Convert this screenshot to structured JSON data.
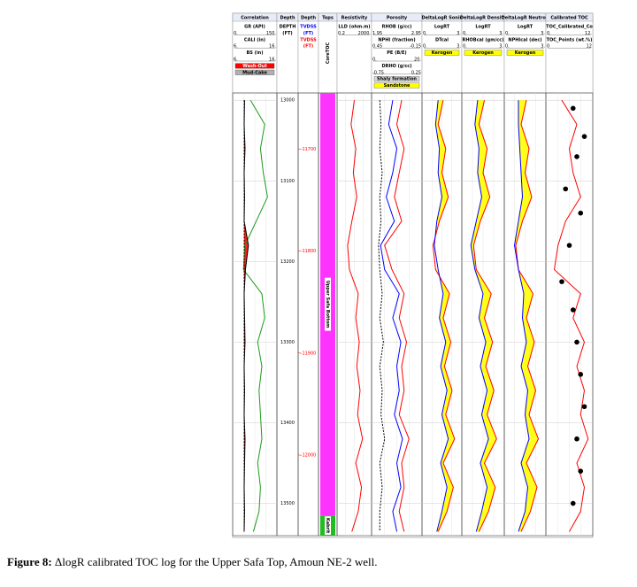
{
  "chart_data": {
    "type": "well-log",
    "samples": [
      13000,
      13030,
      13060,
      13090,
      13120,
      13150,
      13180,
      13210,
      13240,
      13270,
      13300,
      13330,
      13360,
      13390,
      13420,
      13450,
      13480,
      13510,
      13535
    ],
    "ylim": [
      12991,
      13540
    ],
    "yticks": [
      13000,
      13100,
      13200,
      13300,
      13400,
      13500
    ],
    "tvdss_lim": [
      -11645,
      -12079
    ],
    "tvdss_ticks": [
      -11700,
      -11800,
      -11900,
      -12000
    ],
    "zones": [
      {
        "name": "Upper Safa Bottom",
        "top": 12991,
        "base": 13515,
        "color": "#ff33ff"
      },
      {
        "name": "Kabrit",
        "top": 13515,
        "base": 13540,
        "color": "#22bb22"
      }
    ],
    "tracks": [
      {
        "title": "Correlation",
        "header": [
          [
            "GR (API)"
          ],
          [
            "0.",
            "150."
          ],
          [
            "CALI (in)"
          ],
          [
            "6.",
            "16."
          ],
          [
            "BS (in)"
          ],
          [
            "6.",
            "16."
          ],
          {
            "label": "Wash-Out",
            "color": "#ff0000"
          },
          {
            "label": "Mud-Cake",
            "color": "#b0b0b0"
          }
        ],
        "curves": [
          {
            "color": "#1a9a1a",
            "xlim": [
              0,
              150
            ],
            "values": [
              60,
              110,
              95,
              105,
              120,
              80,
              40,
              35,
              100,
              110,
              85,
              100,
              90,
              95,
              100,
              85,
              95,
              90,
              70
            ]
          },
          {
            "color": "#000000",
            "xlim": [
              6,
              16
            ],
            "values": [
              8.6,
              8.5,
              8.7,
              8.5,
              8.6,
              8.5,
              9.5,
              8.8,
              8.5,
              8.6,
              8.7,
              8.5,
              8.6,
              8.5,
              8.7,
              8.6,
              8.5,
              8.6,
              8.5
            ],
            "fill": {
              "with": 2,
              "color": "#ff0000"
            }
          },
          {
            "color": "#000000",
            "xlim": [
              6,
              16
            ],
            "dash": true,
            "values": [
              8.5,
              8.5,
              8.5,
              8.5,
              8.5,
              8.5,
              8.5,
              8.5,
              8.5,
              8.5,
              8.5,
              8.5,
              8.5,
              8.5,
              8.5,
              8.5,
              8.5,
              8.5,
              8.5
            ]
          }
        ]
      },
      {
        "title": "Depth",
        "header": [
          [
            "DEPTH"
          ],
          [
            "(FT)"
          ]
        ],
        "curves": []
      },
      {
        "title": "Depth",
        "header": [
          [
            "TVDSS"
          ],
          [
            "(FT)"
          ],
          [
            "TVDSS"
          ],
          [
            "(FT)"
          ]
        ],
        "curves": []
      },
      {
        "title": "Tops",
        "header": [],
        "vertical": "CoreTOC",
        "curves": []
      },
      {
        "title": "Resistivity",
        "header": [
          [
            "LLD (ohm.m)"
          ],
          [
            "0.2",
            "2000."
          ]
        ],
        "curves": [
          {
            "color": "#ff0000",
            "xlim": [
              0.2,
              2000
            ],
            "log": true,
            "values": [
              20,
              8,
              30,
              15,
              40,
              10,
              3,
              5,
              60,
              30,
              80,
              40,
              100,
              50,
              200,
              30,
              150,
              60,
              10
            ]
          }
        ]
      },
      {
        "title": "Porosity",
        "header": [
          [
            "RHOB (g/cc)"
          ],
          [
            "1.95",
            "2.95"
          ],
          [
            "NPHI (fraction)"
          ],
          [
            "0.45",
            "-0.15"
          ],
          [
            "PE (B/E)"
          ],
          [
            "0.",
            "20."
          ],
          [
            "DRHO (g/cc)"
          ],
          [
            "-0.75",
            "0.25"
          ],
          {
            "label": "Shaly formation",
            "color": "#d8d8d8"
          },
          {
            "label": "Sandstone",
            "color": "#ffff00"
          }
        ],
        "curves": [
          {
            "color": "#ff0000",
            "xlim": [
              1.95,
              2.95
            ],
            "values": [
              2.55,
              2.45,
              2.6,
              2.5,
              2.4,
              2.55,
              2.2,
              2.35,
              2.6,
              2.5,
              2.65,
              2.55,
              2.6,
              2.5,
              2.7,
              2.55,
              2.6,
              2.5,
              2.6
            ]
          },
          {
            "color": "#0000ff",
            "xlim": [
              0.45,
              -0.15
            ],
            "values": [
              0.2,
              0.25,
              0.15,
              0.2,
              0.28,
              0.18,
              0.35,
              0.3,
              0.12,
              0.2,
              0.1,
              0.15,
              0.12,
              0.18,
              0.08,
              0.15,
              0.1,
              0.2,
              0.15
            ]
          },
          {
            "color": "#000000",
            "xlim": [
              0,
              20
            ],
            "dash": true,
            "values": [
              3,
              3.5,
              3,
              4,
              3,
              3.5,
              2.5,
              3,
              4,
              3,
              4.5,
              3,
              4,
              3.5,
              5,
              3,
              4,
              3,
              3
            ]
          }
        ]
      },
      {
        "title": "DeltaLogR Sonic",
        "header": [
          [
            "LogRT"
          ],
          [
            "0.",
            "3."
          ],
          [
            "DTcal"
          ],
          [
            "0.",
            "3."
          ],
          {
            "label": "Kerogen",
            "color": "#ffff00"
          }
        ],
        "curves": [
          {
            "color": "#ff0000",
            "xlim": [
              0,
              3
            ],
            "values": [
              1.6,
              1.2,
              1.8,
              1.5,
              2.0,
              1.3,
              0.8,
              1.0,
              2.1,
              1.6,
              2.2,
              1.7,
              2.3,
              1.8,
              2.5,
              1.6,
              2.4,
              1.9,
              1.2
            ],
            "fill": {
              "with": 1,
              "color": "#ffff00"
            }
          },
          {
            "color": "#0000ff",
            "xlim": [
              0,
              3
            ],
            "values": [
              1.2,
              1.0,
              1.3,
              1.2,
              1.5,
              1.1,
              0.9,
              1.2,
              1.6,
              1.3,
              1.8,
              1.4,
              1.9,
              1.5,
              2.0,
              1.4,
              1.9,
              1.5,
              1.1
            ]
          }
        ]
      },
      {
        "title": "DeltaLogR Density",
        "header": [
          [
            "LogRT"
          ],
          [
            "0.",
            "3."
          ],
          [
            "RHOBcal (gm/cc)"
          ],
          [
            "0.",
            "3."
          ],
          {
            "label": "Kerogen",
            "color": "#ffff00"
          }
        ],
        "curves": [
          {
            "color": "#ff0000",
            "xlim": [
              0,
              3
            ],
            "values": [
              1.6,
              1.2,
              1.8,
              1.5,
              2.0,
              1.3,
              0.8,
              1.0,
              2.1,
              1.6,
              2.2,
              1.7,
              2.3,
              1.8,
              2.5,
              1.6,
              2.4,
              1.9,
              1.2
            ],
            "fill": {
              "with": 1,
              "color": "#ffff00"
            }
          },
          {
            "color": "#0000ff",
            "xlim": [
              0,
              3
            ],
            "values": [
              1.1,
              0.9,
              1.2,
              1.1,
              1.4,
              1.0,
              0.6,
              0.9,
              1.5,
              1.2,
              1.7,
              1.3,
              1.8,
              1.4,
              1.9,
              1.3,
              1.8,
              1.4,
              1.0
            ]
          }
        ]
      },
      {
        "title": "DeltaLogR Neutron",
        "header": [
          [
            "LogRT"
          ],
          [
            "0.",
            "3."
          ],
          [
            "NPHIcal (dec)"
          ],
          [
            "0.",
            "3."
          ],
          {
            "label": "Kerogen",
            "color": "#ffff00"
          }
        ],
        "curves": [
          {
            "color": "#ff0000",
            "xlim": [
              0,
              3
            ],
            "values": [
              1.6,
              1.2,
              1.8,
              1.5,
              2.0,
              1.3,
              0.8,
              1.0,
              2.1,
              1.6,
              2.2,
              1.7,
              2.3,
              1.8,
              2.5,
              1.6,
              2.4,
              1.9,
              1.2
            ],
            "fill": {
              "with": 1,
              "color": "#ffff00"
            }
          },
          {
            "color": "#0000ff",
            "xlim": [
              0,
              3
            ],
            "values": [
              1.0,
              1.0,
              1.1,
              1.2,
              1.3,
              1.0,
              0.7,
              1.0,
              1.4,
              1.3,
              1.6,
              1.2,
              1.7,
              1.5,
              1.8,
              1.2,
              1.7,
              1.5,
              1.0
            ]
          }
        ]
      },
      {
        "title": "Calibrated TOC",
        "header": [
          [
            "TOC_Calibrated_Co"
          ],
          [
            "0.",
            "12."
          ],
          [
            "TOC_Points (wt.%)"
          ],
          [
            "0",
            "12"
          ]
        ],
        "curves": [
          {
            "color": "#ff0000",
            "xlim": [
              0,
              12
            ],
            "values": [
              4,
              8,
              6,
              7,
              9,
              5,
              3,
              2,
              9,
              7,
              10,
              8,
              10,
              9,
              11,
              8,
              10,
              9,
              6
            ]
          },
          {
            "color": "#000000",
            "xlim": [
              0,
              12
            ],
            "points": true,
            "depths": [
              13010,
              13045,
              13070,
              13110,
              13140,
              13180,
              13225,
              13260,
              13300,
              13340,
              13380,
              13420,
              13460,
              13500
            ],
            "values": [
              7,
              10,
              8,
              5,
              9,
              6,
              4,
              7,
              8,
              9,
              10,
              8,
              9,
              7
            ]
          }
        ]
      }
    ]
  },
  "caption": {
    "label": "Figure 8:",
    "text": " ΔlogR calibrated TOC log for the Upper Safa Top, Amoun NE-2 well."
  }
}
